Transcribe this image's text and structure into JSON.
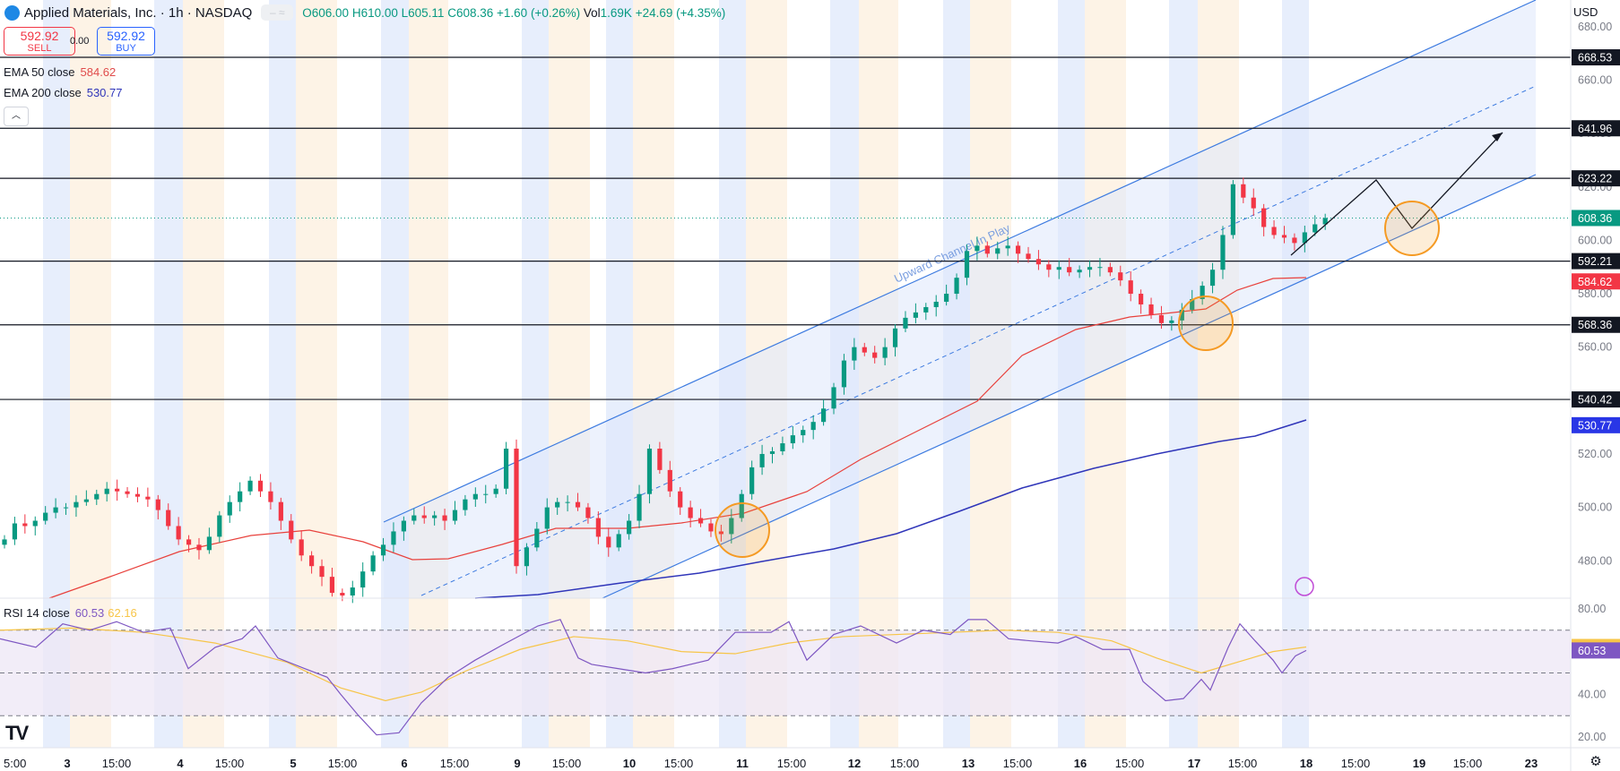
{
  "header": {
    "symbol": "Applied Materials, Inc. · 1h · NASDAQ",
    "open": "O606.00",
    "high": "H610.00",
    "low": "L605.11",
    "close": "C608.36",
    "change": "+1.60 (+0.26%)",
    "vol_label": "Vol",
    "vol": "1.69K",
    "vol_change": "+24.69 (+4.35%)"
  },
  "trade": {
    "sell_price": "592.92",
    "sell_label": "SELL",
    "spread": "0.00",
    "buy_price": "592.92",
    "buy_label": "BUY"
  },
  "indicators": {
    "ema50_label": "EMA 50 close",
    "ema50_value": "584.62",
    "ema200_label": "EMA 200 close",
    "ema200_value": "530.77",
    "rsi_label": "RSI 14 close",
    "rsi_value": "60.53",
    "rsi_ma_value": "62.16"
  },
  "currency": "USD",
  "colors": {
    "up": "#089981",
    "down": "#f23645",
    "ema50": "#e8413c",
    "ema200": "#2f35b9",
    "channel": "#3d7be0",
    "rsi": "#7e57c2",
    "rsi_ma": "#f7c548",
    "marker": "#f59a23"
  },
  "chart_data": {
    "type": "candlestick",
    "title": "Applied Materials, Inc. · 1h · NASDAQ",
    "ylim": [
      466,
      690
    ],
    "price_ticks": [
      "480.00",
      "500.00",
      "520.00",
      "540.00",
      "560.00",
      "580.00",
      "600.00",
      "620.00",
      "640.00",
      "660.00",
      "680.00"
    ],
    "x_ticks": [
      "5:00",
      "3",
      "15:00",
      "4",
      "15:00",
      "5",
      "15:00",
      "6",
      "15:00",
      "9",
      "15:00",
      "10",
      "15:00",
      "11",
      "15:00",
      "12",
      "15:00",
      "13",
      "15:00",
      "16",
      "15:00",
      "17",
      "15:00",
      "18",
      "15:00",
      "19",
      "15:00",
      "23"
    ],
    "horizontal_levels": [
      "668.53",
      "641.96",
      "623.22",
      "592.21",
      "568.36",
      "540.42"
    ],
    "price_labels": {
      "last": "608.36",
      "ema50": "584.62",
      "ema200": "530.77"
    },
    "channel_annotation": "Upward Channel In Play",
    "candles_close": [
      [
        0,
        488
      ],
      [
        2,
        494
      ],
      [
        4,
        493
      ],
      [
        6,
        495
      ],
      [
        8,
        498
      ],
      [
        10,
        500
      ],
      [
        12,
        500
      ],
      [
        14,
        502
      ],
      [
        16,
        503
      ],
      [
        18,
        505
      ],
      [
        20,
        507
      ],
      [
        22,
        506
      ],
      [
        24,
        505
      ],
      [
        26,
        504
      ],
      [
        28,
        503
      ],
      [
        30,
        499
      ],
      [
        32,
        493
      ],
      [
        34,
        488
      ],
      [
        36,
        486
      ],
      [
        38,
        484
      ],
      [
        40,
        489
      ],
      [
        42,
        497
      ],
      [
        44,
        502
      ],
      [
        46,
        506
      ],
      [
        48,
        510
      ],
      [
        50,
        506
      ],
      [
        52,
        502
      ],
      [
        54,
        495
      ],
      [
        56,
        488
      ],
      [
        58,
        482
      ],
      [
        60,
        478
      ],
      [
        62,
        474
      ],
      [
        64,
        468
      ],
      [
        66,
        467
      ],
      [
        68,
        470
      ],
      [
        70,
        476
      ],
      [
        72,
        482
      ],
      [
        74,
        486
      ],
      [
        76,
        491
      ],
      [
        78,
        495
      ],
      [
        80,
        497
      ],
      [
        82,
        496
      ],
      [
        84,
        497
      ],
      [
        86,
        495
      ],
      [
        88,
        499
      ],
      [
        90,
        503
      ],
      [
        92,
        505
      ],
      [
        94,
        505
      ],
      [
        96,
        507
      ],
      [
        98,
        522
      ],
      [
        100,
        478
      ],
      [
        102,
        485
      ],
      [
        104,
        492
      ],
      [
        106,
        500
      ],
      [
        108,
        502
      ],
      [
        110,
        502
      ],
      [
        112,
        500
      ],
      [
        114,
        496
      ],
      [
        116,
        489
      ],
      [
        118,
        485
      ],
      [
        120,
        490
      ],
      [
        122,
        495
      ],
      [
        124,
        505
      ],
      [
        126,
        522
      ],
      [
        128,
        514
      ],
      [
        130,
        506
      ],
      [
        132,
        500
      ],
      [
        134,
        496
      ],
      [
        136,
        494
      ],
      [
        138,
        491
      ],
      [
        140,
        490
      ],
      [
        142,
        496
      ],
      [
        144,
        505
      ],
      [
        146,
        515
      ],
      [
        148,
        520
      ],
      [
        150,
        521
      ],
      [
        152,
        524
      ],
      [
        154,
        527
      ],
      [
        156,
        529
      ],
      [
        158,
        532
      ],
      [
        160,
        537
      ],
      [
        162,
        545
      ],
      [
        164,
        555
      ],
      [
        166,
        560
      ],
      [
        168,
        558
      ],
      [
        170,
        556
      ],
      [
        172,
        560
      ],
      [
        174,
        567
      ],
      [
        176,
        571
      ],
      [
        178,
        573
      ],
      [
        180,
        575
      ],
      [
        182,
        577
      ],
      [
        184,
        580
      ],
      [
        186,
        586
      ],
      [
        188,
        596
      ],
      [
        190,
        598
      ],
      [
        192,
        595
      ],
      [
        194,
        597
      ],
      [
        196,
        598
      ],
      [
        198,
        595
      ],
      [
        200,
        593
      ],
      [
        202,
        591
      ],
      [
        204,
        589
      ],
      [
        206,
        590
      ],
      [
        208,
        588
      ],
      [
        210,
        589
      ],
      [
        212,
        590
      ],
      [
        214,
        590
      ],
      [
        216,
        588
      ],
      [
        218,
        585
      ],
      [
        220,
        580
      ],
      [
        222,
        576
      ],
      [
        224,
        572
      ],
      [
        226,
        569
      ],
      [
        228,
        570
      ],
      [
        230,
        574
      ],
      [
        232,
        578
      ],
      [
        234,
        583
      ],
      [
        236,
        589
      ],
      [
        238,
        602
      ],
      [
        240,
        621
      ],
      [
        242,
        616
      ],
      [
        244,
        612
      ],
      [
        246,
        605
      ],
      [
        248,
        602
      ],
      [
        250,
        601
      ],
      [
        252,
        599
      ],
      [
        254,
        603
      ],
      [
        256,
        606
      ],
      [
        258,
        608.36
      ]
    ],
    "ema50_last": 584.62,
    "ema200_last": 530.77,
    "rsi": {
      "ylim": [
        15,
        85
      ],
      "ticks": [
        "20.00",
        "40.00",
        "60.00",
        "80.00"
      ],
      "levels": [
        70,
        50,
        30
      ],
      "last": 60.53,
      "ma_last": 62.16
    }
  }
}
